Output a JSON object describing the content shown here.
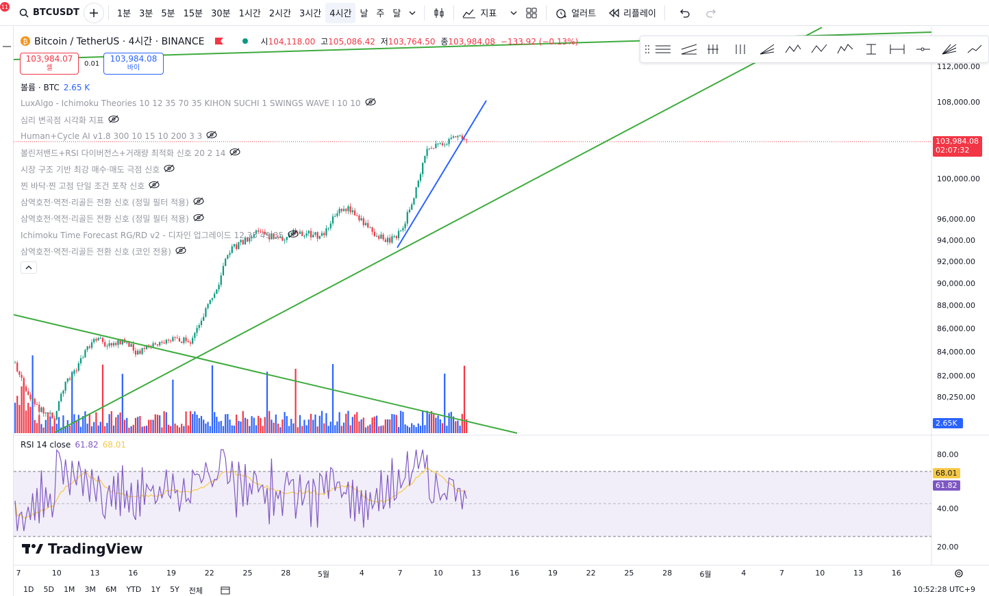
{
  "toolbar": {
    "notif_count": "11",
    "symbol": "BTCUSDT",
    "intervals": [
      "1분",
      "3분",
      "5분",
      "15분",
      "30분",
      "1시간",
      "2시간",
      "3시간",
      "4시간",
      "날",
      "주",
      "달"
    ],
    "active_interval": "4시간",
    "indicators_label": "지표",
    "alert_label": "얼러트",
    "replay_label": "리플레이"
  },
  "legend": {
    "name": "Bitcoin / TetherUS · 4시간 · BINANCE",
    "open_k": "시",
    "open": "104,118.00",
    "high_k": "고",
    "high": "105,086.42",
    "low_k": "저",
    "low": "103,764.50",
    "close_k": "종",
    "close": "103,984.08",
    "change": "−133.92 (−0.13%)",
    "sell_price": "103,984.07",
    "sell_label": "셀",
    "spread": "0.01",
    "buy_price": "103,984.08",
    "buy_label": "바이",
    "volume_label": "볼륨 · BTC",
    "volume_value": "2.65 K"
  },
  "indicators": [
    "LuxAlgo - Ichimoku Theories 10 12 35 70 35 KIHON SUCHI 1 SWINGS WAVE I 10 10",
    "심리 변곡점 시각화 지표",
    "Human+Cycle AI v1.8 300 10 15 10 200 3 3",
    "볼린저밴드+RSI 다이버전스+거래량 최적화 신호 20 2 14",
    "시장 구조 기반 최강 매수·매도 극점 신호",
    "찐 바닥·찐 고점 단일 조건 포착 신호",
    "삼역호전·역전·리골든 전환 신호 (정밀 필터 적용)",
    "삼역호전·역전·리골든 전환 신호 (정밀 필터 적용)",
    "Ichimoku Time Forecast RG/RD v2 - 디자인 업그레이드 12 35 49 35",
    "삼역호전·역전·리골든 전환 신호 (코인 전용)"
  ],
  "price_axis": [
    "112,000.00",
    "108,000.00",
    "100,000.00",
    "96,000.00",
    "94,000.00",
    "92,000.00",
    "90,000.00",
    "88,000.00",
    "86,000.00",
    "84,000.00",
    "82,000.00",
    "80,250.00"
  ],
  "price_axis_values": [
    112000,
    108000,
    100000,
    96000,
    94000,
    92000,
    90000,
    88000,
    86000,
    84000,
    82000,
    80250
  ],
  "last_price_tag": {
    "price": "103,984.08",
    "countdown": "02:07:32",
    "color": "#f23645"
  },
  "volume_tag": "2.65K",
  "rsi": {
    "label": "RSI 14 close",
    "value": "61.82",
    "ma_value": "68.01",
    "axis": [
      "80.00",
      "40.00",
      "20.00"
    ],
    "axis_values": [
      80,
      40,
      20
    ]
  },
  "time_axis": [
    "7",
    "10",
    "13",
    "16",
    "19",
    "22",
    "25",
    "28",
    "5월",
    "4",
    "7",
    "10",
    "13",
    "16",
    "19",
    "22",
    "25",
    "28",
    "6월",
    "4",
    "7",
    "10",
    "13",
    "16"
  ],
  "watermark": "TradingView",
  "bottom_ranges": [
    "1D",
    "5D",
    "1M",
    "3M",
    "6M",
    "YTD",
    "1Y",
    "5Y",
    "전체"
  ],
  "clock": "10:52:28 UTC+9",
  "colors": {
    "up": "#089981",
    "down": "#f23645",
    "blue": "#2962ff",
    "green_line": "#3cab3c",
    "rsi": "#7e57c2",
    "rsi_ma": "#f7c948"
  }
}
